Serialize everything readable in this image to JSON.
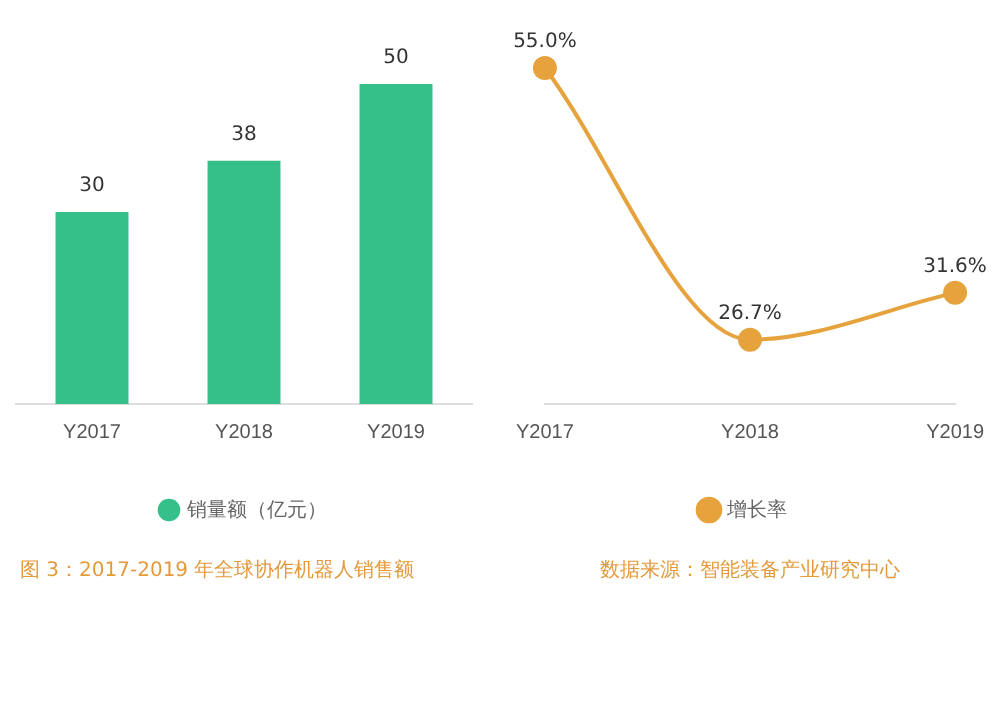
{
  "chart_data": [
    {
      "type": "bar",
      "categories": [
        "Y2017",
        "Y2018",
        "Y2019"
      ],
      "series": [
        {
          "name": "销量额（亿元）",
          "color": "#35c08a",
          "values": [
            30,
            38,
            50
          ]
        }
      ],
      "data_labels": true,
      "legend": "bottom",
      "tick_labels": "x",
      "grid": false,
      "annotations": [
        "图 3：2017-2019 年全球协作机器人销售额"
      ]
    },
    {
      "type": "line",
      "categories": [
        "Y2017",
        "Y2018",
        "Y2019"
      ],
      "series": [
        {
          "name": "增长率",
          "color": "#e6a23c",
          "values": [
            55.0,
            26.7,
            31.6
          ],
          "value_labels": [
            "55.0%",
            "26.7%",
            "31.6%"
          ]
        }
      ],
      "marker": "circle",
      "legend": "bottom",
      "tick_labels": "x",
      "grid": false,
      "annotations": [
        "数据来源：智能装备产业研究中心"
      ]
    }
  ]
}
